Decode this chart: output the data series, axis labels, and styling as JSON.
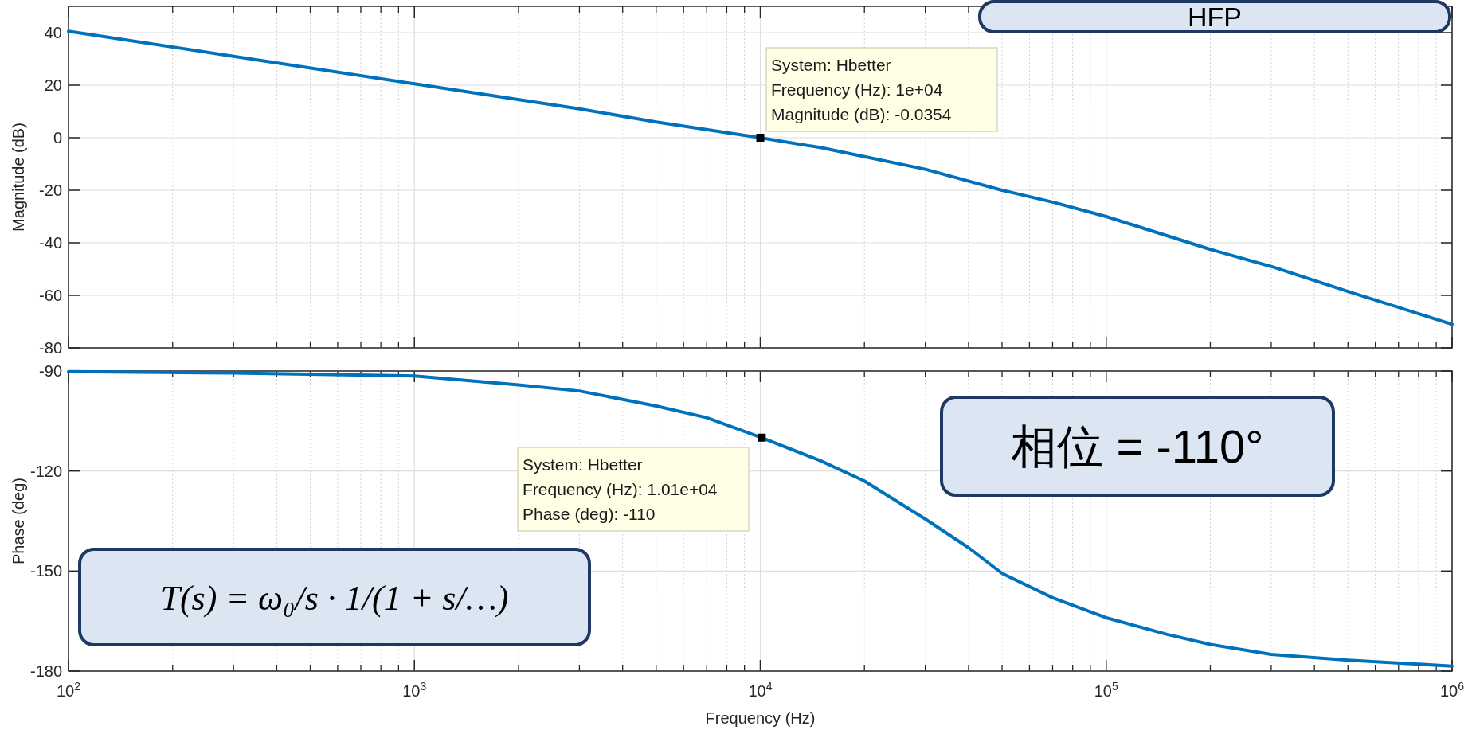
{
  "chart_data": [
    {
      "type": "line",
      "ylabel": "Magnitude (dB)",
      "xlim": [
        100,
        1000000
      ],
      "ylim": [
        -80,
        50
      ],
      "log": "x",
      "grid": true,
      "tick_labels": "y",
      "xticks": [
        100,
        1000,
        10000,
        100000,
        1000000
      ],
      "yticks": [
        -80,
        -60,
        -40,
        -20,
        0,
        20,
        40
      ],
      "series": [
        {
          "color": "#0072bd",
          "x": [
            100,
            300,
            1000,
            3000,
            5000,
            10000,
            15000,
            20000,
            30000,
            50000,
            70000,
            100000,
            200000,
            300000,
            500000,
            1000000
          ],
          "values": [
            40.5,
            31,
            20.5,
            11,
            6,
            0,
            -3.8,
            -7.2,
            -12,
            -20,
            -24.5,
            -30,
            -42.5,
            -49,
            -58.5,
            -71
          ]
        },
        {
          "type": "scatter",
          "marker": "square",
          "color": "#000000",
          "x": [
            10000
          ],
          "values": [
            0
          ]
        }
      ],
      "annotations": [
        "System: Hbetter",
        "Frequency (Hz): 1e+04",
        "Magnitude (dB): -0.0354",
        "HFP"
      ]
    },
    {
      "type": "line",
      "ylabel": "Phase (deg)",
      "xlabel": "Frequency  (Hz)",
      "xlim": [
        100,
        1000000
      ],
      "ylim": [
        -180,
        -90
      ],
      "log": "x",
      "grid": true,
      "xticks": [
        {
          "value": 100,
          "label": "10$^{2}$"
        },
        {
          "value": 1000,
          "label": "10$^{3}$"
        },
        {
          "value": 10000,
          "label": "10$^{4}$"
        },
        {
          "value": 100000,
          "label": "10$^{5}$"
        },
        {
          "value": 1000000,
          "label": "10$^{6}$"
        }
      ],
      "yticks": [
        -180,
        -150,
        -120,
        -90
      ],
      "series": [
        {
          "color": "#0072bd",
          "x": [
            100,
            300,
            1000,
            2000,
            3000,
            5000,
            7000,
            10100,
            15000,
            20000,
            30000,
            40000,
            50000,
            70000,
            100000,
            150000,
            200000,
            300000,
            500000,
            1000000
          ],
          "values": [
            -90.2,
            -90.6,
            -91.5,
            -94.2,
            -96,
            -100.5,
            -104,
            -110,
            -117,
            -123,
            -134.4,
            -143,
            -150.7,
            -158,
            -164,
            -169,
            -172,
            -175,
            -176.7,
            -178.5
          ]
        },
        {
          "type": "scatter",
          "marker": "square",
          "color": "#000000",
          "x": [
            10100
          ],
          "values": [
            -110
          ]
        }
      ],
      "annotations": [
        "System: Hbetter",
        "Frequency (Hz): 1.01e+04",
        "Phase (deg): -110",
        "相位 = -110°",
        "T(s) = ω₀/s · 1/(1 + s/…)"
      ]
    }
  ]
}
